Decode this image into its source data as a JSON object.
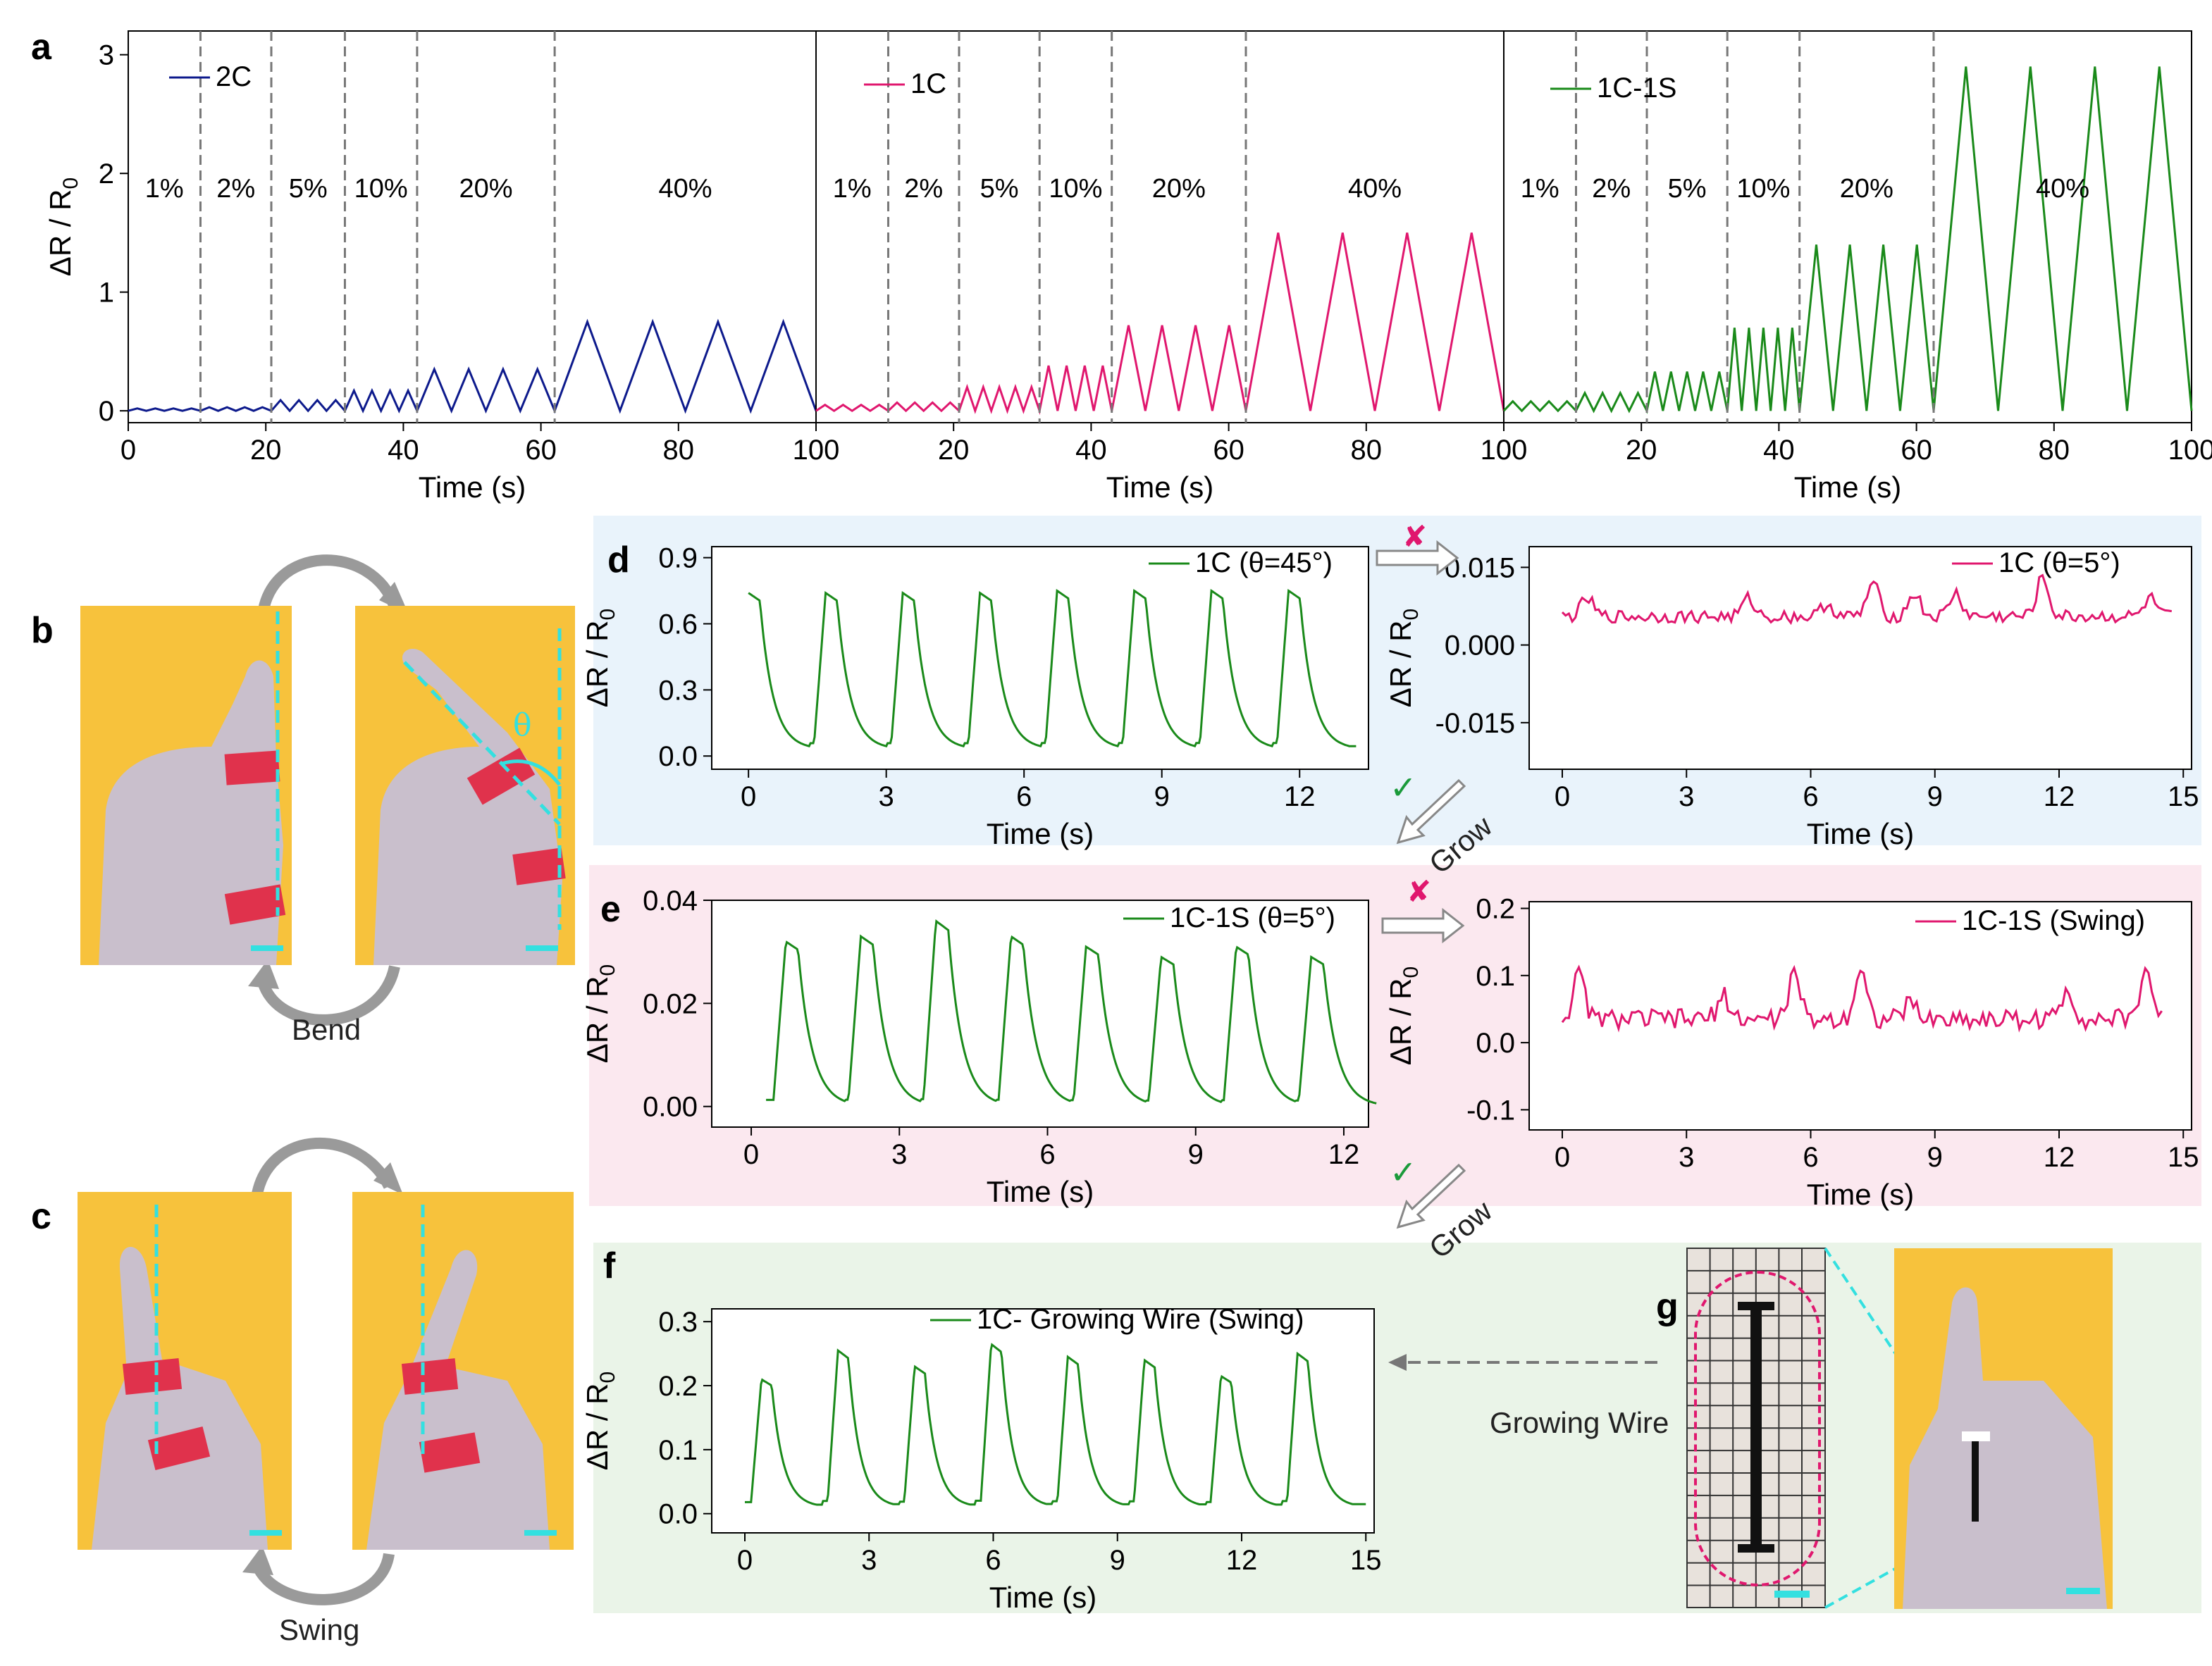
{
  "labels": {
    "a": "a",
    "b": "b",
    "c": "c",
    "d": "d",
    "e": "e",
    "f": "f",
    "g": "g"
  },
  "captions": {
    "bend": "Bend",
    "swing": "Swing",
    "grow": "Grow",
    "growing_wire": "Growing Wire",
    "theta": "θ",
    "cross": "✘",
    "check": "✓"
  },
  "colors": {
    "navy": "#0d1a8c",
    "pink": "#e0176e",
    "green": "#1a8a1a",
    "bg_blue": "#e9f3fb",
    "bg_pink": "#fbe8ef",
    "bg_green": "#eaf4e8",
    "photo_yellow": "#f7c23c",
    "cyan": "#33e0e0",
    "tape_red": "#e0324c"
  },
  "chart_data": [
    {
      "id": "a1",
      "type": "line",
      "ylabel": "ΔR / R0",
      "xlabel": "Time (s)",
      "xlim": [
        0,
        100
      ],
      "ylim": [
        -0.1,
        3.2
      ],
      "xticks": [
        0,
        20,
        40,
        60,
        80,
        100
      ],
      "yticks": [
        0,
        1,
        2,
        3
      ],
      "series": [
        {
          "name": "2C",
          "color": "#0d1a8c"
        }
      ],
      "segments": [
        {
          "start": 0,
          "end": 10.5,
          "amp": 0.02,
          "cycles": 4,
          "label": "1%"
        },
        {
          "start": 10.5,
          "end": 20.8,
          "amp": 0.03,
          "cycles": 4,
          "label": "2%"
        },
        {
          "start": 20.8,
          "end": 31.5,
          "amp": 0.09,
          "cycles": 4,
          "label": "5%"
        },
        {
          "start": 31.5,
          "end": 42.0,
          "amp": 0.17,
          "cycles": 4,
          "label": "10%"
        },
        {
          "start": 42.0,
          "end": 62.0,
          "amp": 0.35,
          "cycles": 4,
          "label": "20%"
        },
        {
          "start": 62.0,
          "end": 100,
          "amp": 0.75,
          "cycles": 4,
          "label": "40%"
        }
      ]
    },
    {
      "id": "a2",
      "type": "line",
      "xlabel": "Time (s)",
      "xlim": [
        0,
        100
      ],
      "ylim": [
        -0.1,
        3.2
      ],
      "xticks": [
        0,
        20,
        40,
        60,
        80,
        100
      ],
      "series": [
        {
          "name": "1C",
          "color": "#e0176e"
        }
      ],
      "segments": [
        {
          "start": 0,
          "end": 10.5,
          "amp": 0.05,
          "cycles": 4,
          "label": "1%"
        },
        {
          "start": 10.5,
          "end": 20.8,
          "amp": 0.07,
          "cycles": 4,
          "label": "2%"
        },
        {
          "start": 20.8,
          "end": 32.5,
          "amp": 0.2,
          "cycles": 5,
          "label": "5%"
        },
        {
          "start": 32.5,
          "end": 43.0,
          "amp": 0.38,
          "cycles": 4,
          "label": "10%"
        },
        {
          "start": 43.0,
          "end": 62.5,
          "amp": 0.72,
          "cycles": 4,
          "label": "20%"
        },
        {
          "start": 62.5,
          "end": 100,
          "amp": 1.5,
          "cycles": 4,
          "label": "40%"
        }
      ]
    },
    {
      "id": "a3",
      "type": "line",
      "xlabel": "Time (s)",
      "xlim": [
        0,
        100
      ],
      "ylim": [
        -0.1,
        3.2
      ],
      "xticks": [
        0,
        20,
        40,
        60,
        80,
        100
      ],
      "series": [
        {
          "name": "1C-1S",
          "color": "#1a8a1a"
        }
      ],
      "segments": [
        {
          "start": 0,
          "end": 10.5,
          "amp": 0.08,
          "cycles": 4,
          "label": "1%"
        },
        {
          "start": 10.5,
          "end": 20.8,
          "amp": 0.15,
          "cycles": 4,
          "label": "2%"
        },
        {
          "start": 20.8,
          "end": 32.5,
          "amp": 0.33,
          "cycles": 5,
          "label": "5%"
        },
        {
          "start": 32.5,
          "end": 43.0,
          "amp": 0.7,
          "cycles": 5,
          "label": "10%"
        },
        {
          "start": 43.0,
          "end": 62.5,
          "amp": 1.4,
          "cycles": 4,
          "label": "20%"
        },
        {
          "start": 62.5,
          "end": 100,
          "amp": 2.9,
          "cycles": 4,
          "label": "40%"
        }
      ]
    },
    {
      "id": "d1",
      "type": "line",
      "ylabel": "ΔR / R0",
      "xlabel": "Time (s)",
      "xlim": [
        -0.8,
        13.5
      ],
      "ylim": [
        -0.06,
        0.95
      ],
      "xticks": [
        0,
        3,
        6,
        9,
        12
      ],
      "yticks": [
        0.0,
        0.3,
        0.6,
        0.9
      ],
      "yticklabels": [
        "0.0",
        "0.3",
        "0.6",
        "0.9"
      ],
      "series": [
        {
          "name": "1C (θ=45°)",
          "color": "#1a8a1a"
        }
      ],
      "pulses": {
        "start": 0,
        "period": 1.68,
        "count": 8,
        "base": 0.03,
        "peaks": [
          0.74,
          0.74,
          0.74,
          0.74,
          0.75,
          0.75,
          0.75,
          0.75
        ]
      }
    },
    {
      "id": "d2",
      "type": "line",
      "ylabel": "ΔR / R0",
      "xlabel": "Time (s)",
      "xlim": [
        -0.8,
        15.2
      ],
      "ylim": [
        -0.024,
        0.019
      ],
      "xticks": [
        0,
        3,
        6,
        9,
        12,
        15
      ],
      "yticks": [
        -0.015,
        0.0,
        0.015
      ],
      "yticklabels": [
        "-0.015",
        "0.000",
        "0.015"
      ],
      "series": [
        {
          "name": "1C (θ=5°)",
          "color": "#e0176e"
        }
      ],
      "noise": {
        "start": 0,
        "end": 14.8,
        "mean": 0.0055,
        "spread": 0.0025,
        "spikes": [
          [
            0.6,
            0.009
          ],
          [
            4.5,
            0.009
          ],
          [
            6.4,
            0.008
          ],
          [
            7.5,
            0.012
          ],
          [
            8.5,
            0.01
          ],
          [
            9.5,
            0.01
          ],
          [
            11.6,
            0.013
          ],
          [
            14.2,
            0.009
          ]
        ]
      }
    },
    {
      "id": "e1",
      "type": "line",
      "ylabel": "ΔR / R0",
      "xlabel": "Time (s)",
      "xlim": [
        -0.8,
        12.5
      ],
      "ylim": [
        -0.004,
        0.04
      ],
      "xticks": [
        0,
        3,
        6,
        9,
        12
      ],
      "yticks": [
        0.0,
        0.02,
        0.04
      ],
      "yticklabels": [
        "0.00",
        "0.02",
        "0.04"
      ],
      "series": [
        {
          "name": "1C-1S (θ=5°)",
          "color": "#1a8a1a"
        }
      ],
      "pulses": {
        "start": 0.7,
        "period": 1.52,
        "count": 8,
        "base": 0.0,
        "peaks": [
          0.032,
          0.033,
          0.036,
          0.033,
          0.031,
          0.029,
          0.031,
          0.029
        ]
      }
    },
    {
      "id": "e2",
      "type": "line",
      "ylabel": "ΔR / R0",
      "xlabel": "Time (s)",
      "xlim": [
        -0.8,
        15.2
      ],
      "ylim": [
        -0.13,
        0.21
      ],
      "xticks": [
        0,
        3,
        6,
        9,
        12,
        15
      ],
      "yticks": [
        -0.1,
        0.0,
        0.1,
        0.2
      ],
      "yticklabels": [
        "-0.1",
        "0.0",
        "0.1",
        "0.2"
      ],
      "series": [
        {
          "name": "1C-1S (Swing)",
          "color": "#e0176e"
        }
      ],
      "noise": {
        "start": 0,
        "end": 14.5,
        "mean": 0.035,
        "spread": 0.03,
        "spikes": [
          [
            0.4,
            0.1
          ],
          [
            3.9,
            0.07
          ],
          [
            5.6,
            0.1
          ],
          [
            7.2,
            0.11
          ],
          [
            8.4,
            0.06
          ],
          [
            12.2,
            0.08
          ],
          [
            14.1,
            0.11
          ]
        ]
      }
    },
    {
      "id": "f1",
      "type": "line",
      "ylabel": "ΔR / R0",
      "xlabel": "Time (s)",
      "xlim": [
        -0.8,
        15.2
      ],
      "ylim": [
        -0.03,
        0.32
      ],
      "xticks": [
        0,
        3,
        6,
        9,
        12,
        15
      ],
      "yticks": [
        0.0,
        0.1,
        0.2,
        0.3
      ],
      "yticklabels": [
        "0.0",
        "0.1",
        "0.2",
        "0.3"
      ],
      "series": [
        {
          "name": "1C- Growing Wire (Swing)",
          "color": "#1a8a1a"
        }
      ],
      "pulses": {
        "start": 0.4,
        "period": 1.85,
        "count": 8,
        "base": 0.01,
        "peaks": [
          0.21,
          0.255,
          0.23,
          0.265,
          0.245,
          0.24,
          0.215,
          0.25
        ]
      }
    }
  ]
}
